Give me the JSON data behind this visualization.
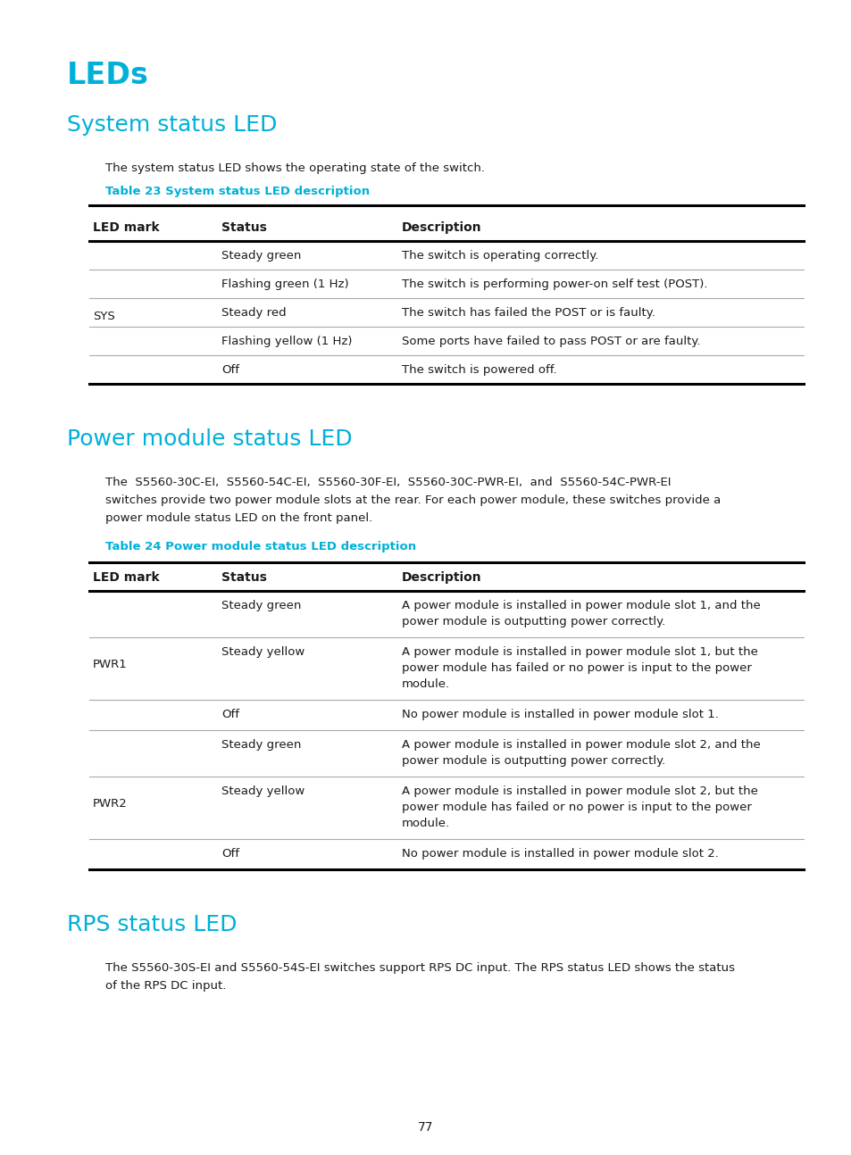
{
  "bg_color": "#ffffff",
  "cyan_color": "#00b0d8",
  "black_color": "#1a1a1a",
  "thin_line_color": "#aaaaaa",
  "thick_line_color": "#000000",
  "heading1": "LEDs",
  "heading2": "System status LED",
  "heading3": "Power module status LED",
  "heading4": "RPS status LED",
  "sys_intro": "The system status LED shows the operating state of the switch.",
  "sys_table_title": "Table 23 System status LED description",
  "sys_col_headers": [
    "LED mark",
    "Status",
    "Description"
  ],
  "sys_rows": [
    [
      "",
      "Steady green",
      "The switch is operating correctly."
    ],
    [
      "",
      "Flashing green (1 Hz)",
      "The switch is performing power-on self test (POST)."
    ],
    [
      "SYS",
      "Steady red",
      "The switch has failed the POST or is faulty."
    ],
    [
      "",
      "Flashing yellow (1 Hz)",
      "Some ports have failed to pass POST or are faulty."
    ],
    [
      "",
      "Off",
      "The switch is powered off."
    ]
  ],
  "pwr_intro_line1": "The  S5560-30C-EI,  S5560-54C-EI,  S5560-30F-EI,  S5560-30C-PWR-EI,  and  S5560-54C-PWR-EI",
  "pwr_intro_line2": "switches provide two power module slots at the rear. For each power module, these switches provide a",
  "pwr_intro_line3": "power module status LED on the front panel.",
  "pwr_table_title": "Table 24 Power module status LED description",
  "pwr_col_headers": [
    "LED mark",
    "Status",
    "Description"
  ],
  "pwr_rows": [
    [
      "",
      "Steady green",
      [
        "A power module is installed in power module slot 1, and the",
        "power module is outputting power correctly."
      ]
    ],
    [
      "PWR1",
      "Steady yellow",
      [
        "A power module is installed in power module slot 1, but the",
        "power module has failed or no power is input to the power",
        "module."
      ]
    ],
    [
      "",
      "Off",
      [
        "No power module is installed in power module slot 1."
      ]
    ],
    [
      "",
      "Steady green",
      [
        "A power module is installed in power module slot 2, and the",
        "power module is outputting power correctly."
      ]
    ],
    [
      "PWR2",
      "Steady yellow",
      [
        "A power module is installed in power module slot 2, but the",
        "power module has failed or no power is input to the power",
        "module."
      ]
    ],
    [
      "",
      "Off",
      [
        "No power module is installed in power module slot 2."
      ]
    ]
  ],
  "rps_intro_line1": "The S5560-30S-EI and S5560-54S-EI switches support RPS DC input. The RPS status LED shows the status",
  "rps_intro_line2": "of the RPS DC input.",
  "page_number": "77"
}
